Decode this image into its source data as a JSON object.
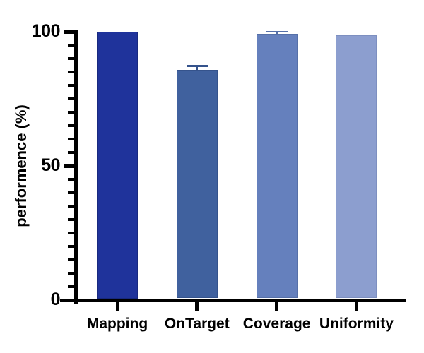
{
  "chart_data": {
    "type": "bar",
    "title": "",
    "xlabel": "",
    "ylabel": "performence (%)",
    "categories": [
      "Mapping",
      "OnTarget",
      "Coverage",
      "Uniformity"
    ],
    "values": [
      100,
      85.8,
      99.2,
      98.7
    ],
    "errors": [
      0,
      1.5,
      0.8,
      0
    ],
    "bar_colors": [
      "#1f339b",
      "#40619e",
      "#6580bd",
      "#8c9ecf"
    ],
    "bar_edge_colors": [
      "#18297f",
      "#35538c",
      "#5670a8",
      "#7d8fc0"
    ],
    "ylim": [
      0,
      100
    ],
    "yticks_major": [
      0,
      50,
      100
    ],
    "ytick_labels": [
      "0",
      "50",
      "100"
    ],
    "ytick_minor_step": 5,
    "grid": false,
    "legend": null,
    "axis_color": "#000000",
    "background_color": "#ffffff"
  }
}
